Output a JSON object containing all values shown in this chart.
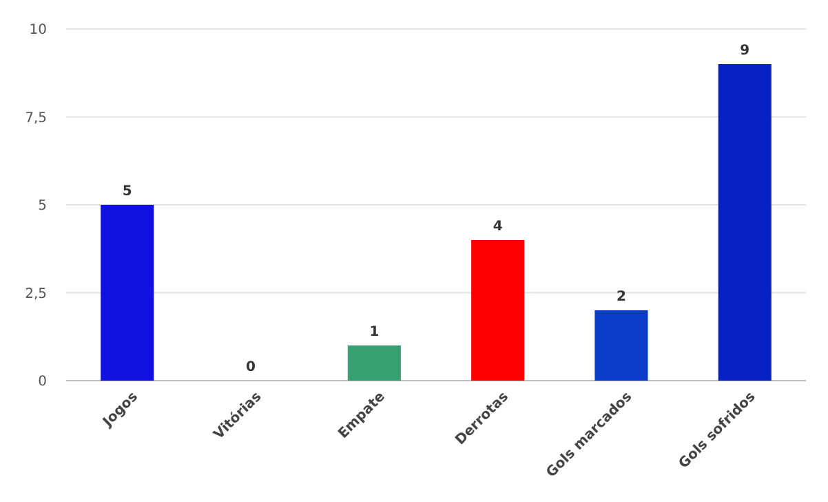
{
  "chart_data": {
    "type": "bar",
    "categories": [
      "Jogos",
      "Vitórias",
      "Empate",
      "Derrotas",
      "Gols marcados",
      "Gols sofridos"
    ],
    "values": [
      5,
      0,
      1,
      4,
      2,
      9
    ],
    "colors": [
      "#1010e0",
      "#1a30d0",
      "#36a070",
      "#ff0000",
      "#0a3cc8",
      "#0622c4"
    ],
    "ylim": [
      0,
      10
    ],
    "yticks": [
      0,
      {
        "value": 2.5,
        "label": "2,5"
      },
      5,
      {
        "value": 7.5,
        "label": "7,5"
      },
      10
    ],
    "grid": "y",
    "data_labels": true
  }
}
